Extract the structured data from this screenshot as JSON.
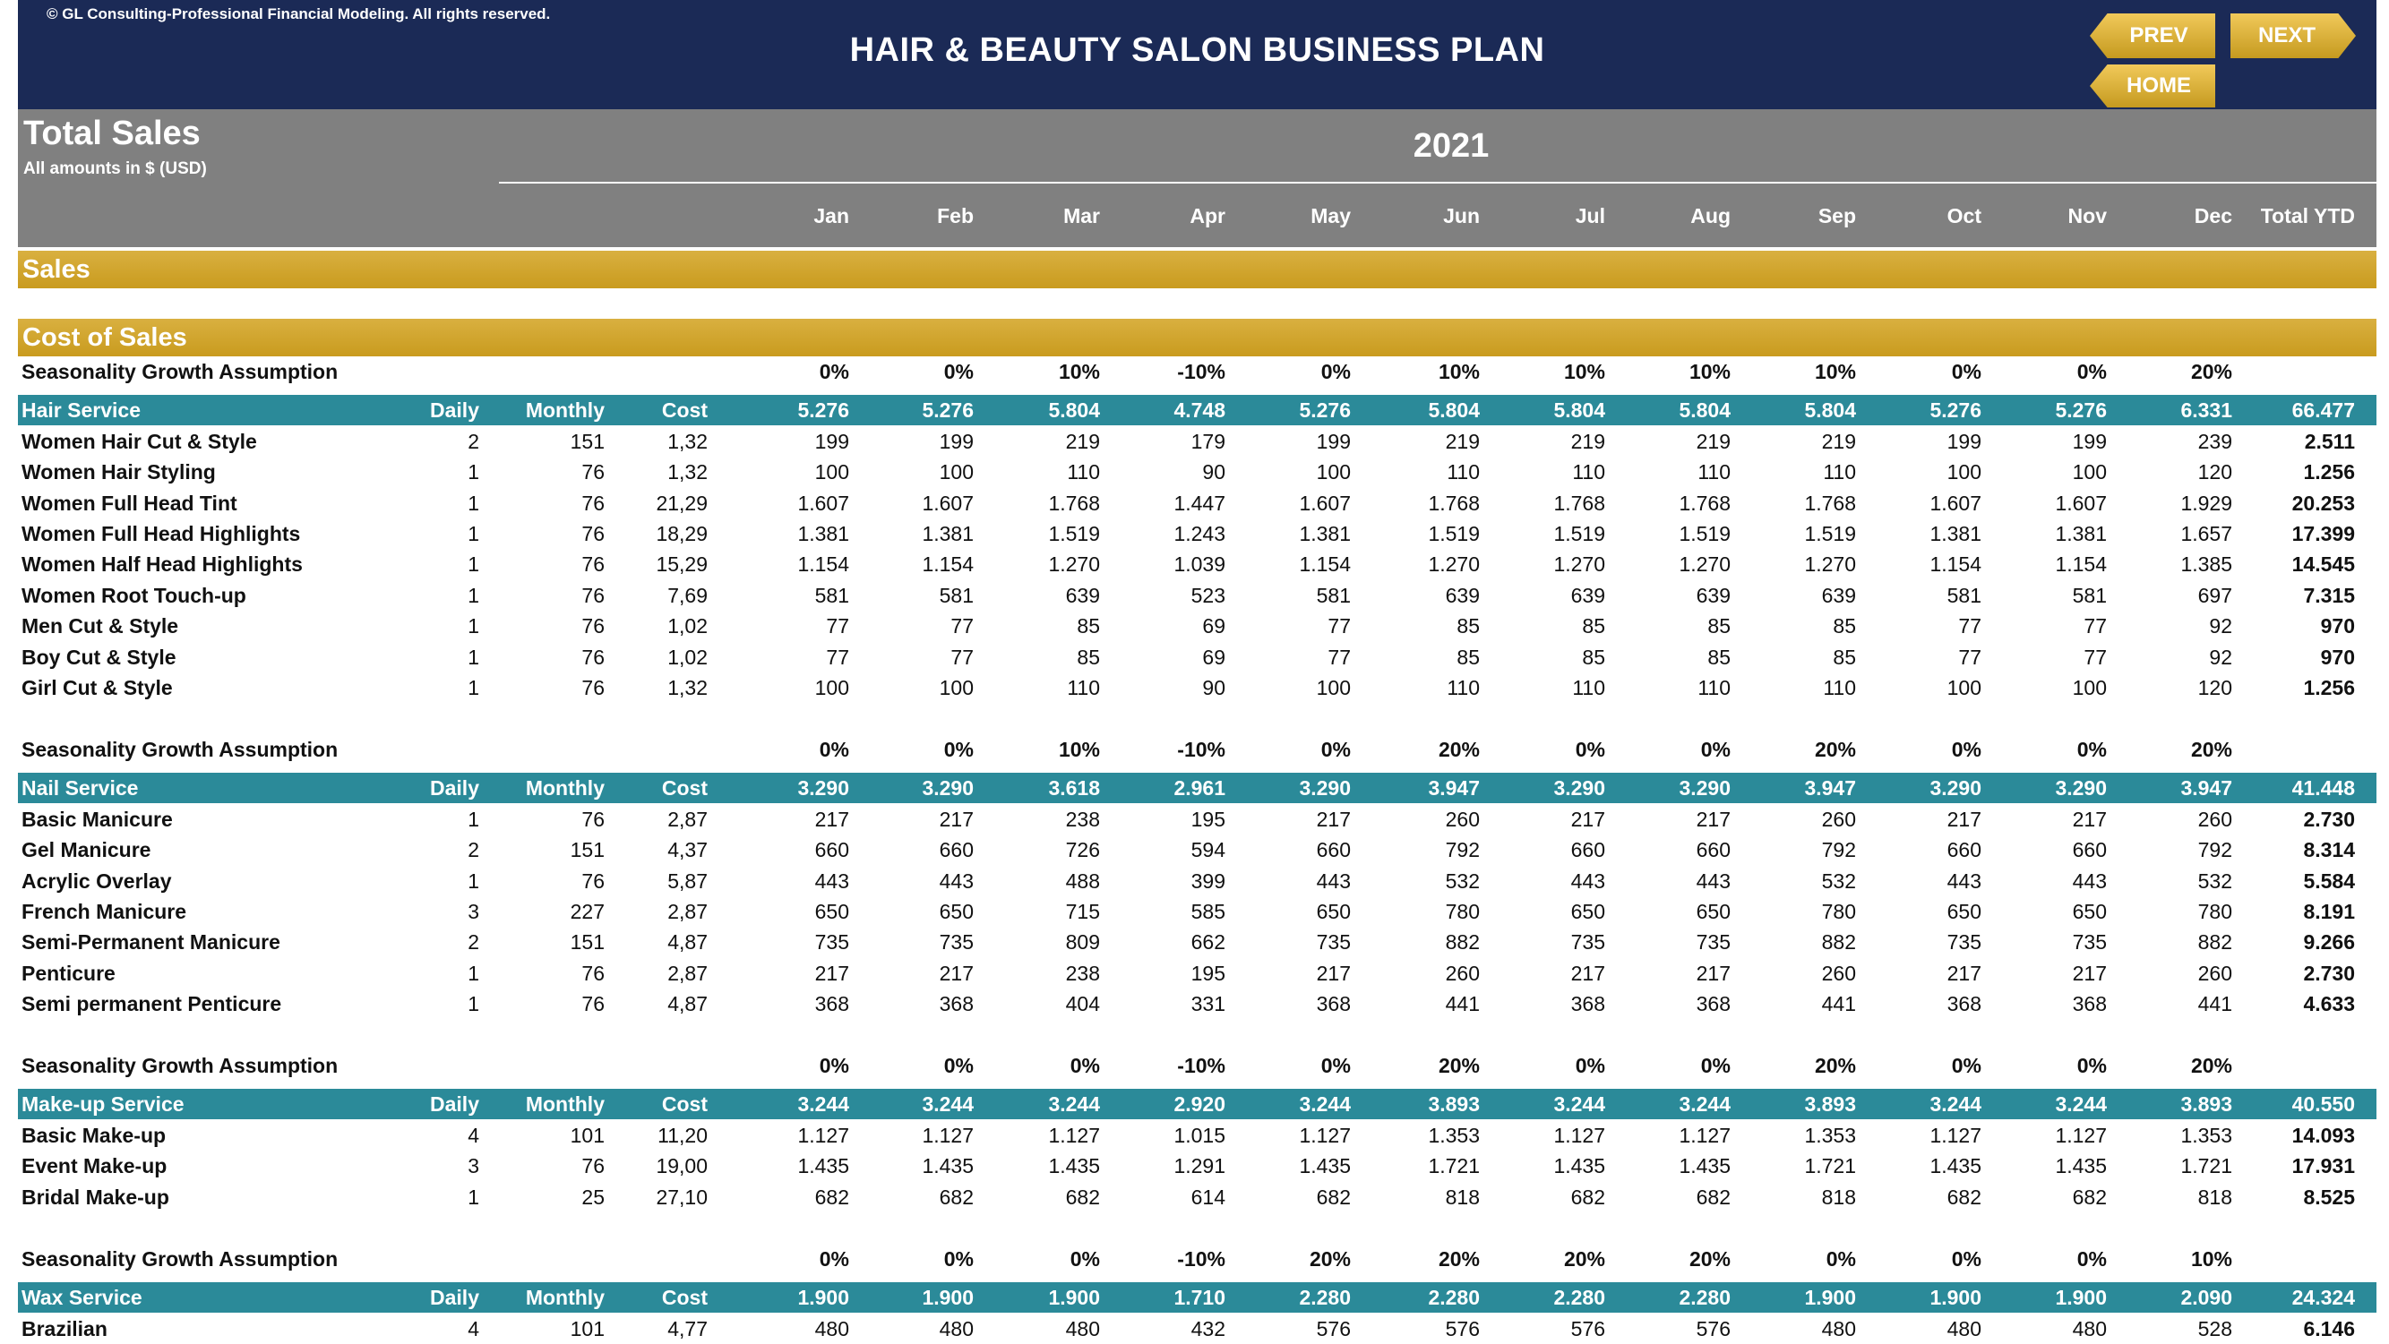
{
  "copyright": "© GL Consulting-Professional Financial Modeling. All rights reserved.",
  "title": "HAIR & BEAUTY SALON BUSINESS PLAN",
  "nav": {
    "prev": "PREV",
    "next": "NEXT",
    "home": "HOME"
  },
  "header": {
    "page_title": "Total Sales",
    "subtitle": "All amounts in $ (USD)",
    "year": "2021",
    "months": [
      "Jan",
      "Feb",
      "Mar",
      "Apr",
      "May",
      "Jun",
      "Jul",
      "Aug",
      "Sep",
      "Oct",
      "Nov",
      "Dec"
    ],
    "total_label": "Total YTD"
  },
  "bands": {
    "sales": "Sales",
    "cost_of_sales": "Cost of Sales"
  },
  "colors": {
    "navy": "#1b2a56",
    "gray": "#808080",
    "gold": "#c99b1e",
    "teal": "#2b8a99"
  },
  "sections": [
    {
      "seasonality_label": "Seasonality Growth Assumption",
      "seasonality": [
        "0%",
        "0%",
        "10%",
        "-10%",
        "0%",
        "10%",
        "10%",
        "10%",
        "10%",
        "0%",
        "0%",
        "20%"
      ],
      "name": "Hair Service",
      "daily_label": "Daily",
      "monthly_label": "Monthly",
      "cost_label": "Cost",
      "totals": [
        "5.276",
        "5.276",
        "5.804",
        "4.748",
        "5.276",
        "5.804",
        "5.804",
        "5.804",
        "5.804",
        "5.276",
        "5.276",
        "6.331"
      ],
      "total_ytd": "66.477",
      "items": [
        {
          "label": "Women Hair Cut & Style",
          "daily": "2",
          "monthly": "151",
          "cost": "1,32",
          "months": [
            "199",
            "199",
            "219",
            "179",
            "199",
            "219",
            "219",
            "219",
            "219",
            "199",
            "199",
            "239"
          ],
          "total": "2.511"
        },
        {
          "label": "Women Hair Styling",
          "daily": "1",
          "monthly": "76",
          "cost": "1,32",
          "months": [
            "100",
            "100",
            "110",
            "90",
            "100",
            "110",
            "110",
            "110",
            "110",
            "100",
            "100",
            "120"
          ],
          "total": "1.256"
        },
        {
          "label": "Women Full Head Tint",
          "daily": "1",
          "monthly": "76",
          "cost": "21,29",
          "months": [
            "1.607",
            "1.607",
            "1.768",
            "1.447",
            "1.607",
            "1.768",
            "1.768",
            "1.768",
            "1.768",
            "1.607",
            "1.607",
            "1.929"
          ],
          "total": "20.253"
        },
        {
          "label": "Women Full Head Highlights",
          "daily": "1",
          "monthly": "76",
          "cost": "18,29",
          "months": [
            "1.381",
            "1.381",
            "1.519",
            "1.243",
            "1.381",
            "1.519",
            "1.519",
            "1.519",
            "1.519",
            "1.381",
            "1.381",
            "1.657"
          ],
          "total": "17.399"
        },
        {
          "label": "Women Half Head Highlights",
          "daily": "1",
          "monthly": "76",
          "cost": "15,29",
          "months": [
            "1.154",
            "1.154",
            "1.270",
            "1.039",
            "1.154",
            "1.270",
            "1.270",
            "1.270",
            "1.270",
            "1.154",
            "1.154",
            "1.385"
          ],
          "total": "14.545"
        },
        {
          "label": "Women Root Touch-up",
          "daily": "1",
          "monthly": "76",
          "cost": "7,69",
          "months": [
            "581",
            "581",
            "639",
            "523",
            "581",
            "639",
            "639",
            "639",
            "639",
            "581",
            "581",
            "697"
          ],
          "total": "7.315"
        },
        {
          "label": "Men Cut & Style",
          "daily": "1",
          "monthly": "76",
          "cost": "1,02",
          "months": [
            "77",
            "77",
            "85",
            "69",
            "77",
            "85",
            "85",
            "85",
            "85",
            "77",
            "77",
            "92"
          ],
          "total": "970"
        },
        {
          "label": "Boy Cut & Style",
          "daily": "1",
          "monthly": "76",
          "cost": "1,02",
          "months": [
            "77",
            "77",
            "85",
            "69",
            "77",
            "85",
            "85",
            "85",
            "85",
            "77",
            "77",
            "92"
          ],
          "total": "970"
        },
        {
          "label": "Girl Cut & Style",
          "daily": "1",
          "monthly": "76",
          "cost": "1,32",
          "months": [
            "100",
            "100",
            "110",
            "90",
            "100",
            "110",
            "110",
            "110",
            "110",
            "100",
            "100",
            "120"
          ],
          "total": "1.256"
        }
      ]
    },
    {
      "seasonality_label": "Seasonality Growth Assumption",
      "seasonality": [
        "0%",
        "0%",
        "10%",
        "-10%",
        "0%",
        "20%",
        "0%",
        "0%",
        "20%",
        "0%",
        "0%",
        "20%"
      ],
      "name": "Nail Service",
      "daily_label": "Daily",
      "monthly_label": "Monthly",
      "cost_label": "Cost",
      "totals": [
        "3.290",
        "3.290",
        "3.618",
        "2.961",
        "3.290",
        "3.947",
        "3.290",
        "3.290",
        "3.947",
        "3.290",
        "3.290",
        "3.947"
      ],
      "total_ytd": "41.448",
      "items": [
        {
          "label": "Basic Manicure",
          "daily": "1",
          "monthly": "76",
          "cost": "2,87",
          "months": [
            "217",
            "217",
            "238",
            "195",
            "217",
            "260",
            "217",
            "217",
            "260",
            "217",
            "217",
            "260"
          ],
          "total": "2.730"
        },
        {
          "label": "Gel Manicure",
          "daily": "2",
          "monthly": "151",
          "cost": "4,37",
          "months": [
            "660",
            "660",
            "726",
            "594",
            "660",
            "792",
            "660",
            "660",
            "792",
            "660",
            "660",
            "792"
          ],
          "total": "8.314"
        },
        {
          "label": "Acrylic Overlay",
          "daily": "1",
          "monthly": "76",
          "cost": "5,87",
          "months": [
            "443",
            "443",
            "488",
            "399",
            "443",
            "532",
            "443",
            "443",
            "532",
            "443",
            "443",
            "532"
          ],
          "total": "5.584"
        },
        {
          "label": "French Manicure",
          "daily": "3",
          "monthly": "227",
          "cost": "2,87",
          "months": [
            "650",
            "650",
            "715",
            "585",
            "650",
            "780",
            "650",
            "650",
            "780",
            "650",
            "650",
            "780"
          ],
          "total": "8.191"
        },
        {
          "label": "Semi-Permanent Manicure",
          "daily": "2",
          "monthly": "151",
          "cost": "4,87",
          "months": [
            "735",
            "735",
            "809",
            "662",
            "735",
            "882",
            "735",
            "735",
            "882",
            "735",
            "735",
            "882"
          ],
          "total": "9.266"
        },
        {
          "label": "Penticure",
          "daily": "1",
          "monthly": "76",
          "cost": "2,87",
          "months": [
            "217",
            "217",
            "238",
            "195",
            "217",
            "260",
            "217",
            "217",
            "260",
            "217",
            "217",
            "260"
          ],
          "total": "2.730"
        },
        {
          "label": "Semi permanent Penticure",
          "daily": "1",
          "monthly": "76",
          "cost": "4,87",
          "months": [
            "368",
            "368",
            "404",
            "331",
            "368",
            "441",
            "368",
            "368",
            "441",
            "368",
            "368",
            "441"
          ],
          "total": "4.633"
        }
      ]
    },
    {
      "seasonality_label": "Seasonality Growth Assumption",
      "seasonality": [
        "0%",
        "0%",
        "0%",
        "-10%",
        "0%",
        "20%",
        "0%",
        "0%",
        "20%",
        "0%",
        "0%",
        "20%"
      ],
      "name": "Make-up Service",
      "daily_label": "Daily",
      "monthly_label": "Monthly",
      "cost_label": "Cost",
      "totals": [
        "3.244",
        "3.244",
        "3.244",
        "2.920",
        "3.244",
        "3.893",
        "3.244",
        "3.244",
        "3.893",
        "3.244",
        "3.244",
        "3.893"
      ],
      "total_ytd": "40.550",
      "items": [
        {
          "label": "Basic Make-up",
          "daily": "4",
          "monthly": "101",
          "cost": "11,20",
          "months": [
            "1.127",
            "1.127",
            "1.127",
            "1.015",
            "1.127",
            "1.353",
            "1.127",
            "1.127",
            "1.353",
            "1.127",
            "1.127",
            "1.353"
          ],
          "total": "14.093"
        },
        {
          "label": "Event Make-up",
          "daily": "3",
          "monthly": "76",
          "cost": "19,00",
          "months": [
            "1.435",
            "1.435",
            "1.435",
            "1.291",
            "1.435",
            "1.721",
            "1.435",
            "1.435",
            "1.721",
            "1.435",
            "1.435",
            "1.721"
          ],
          "total": "17.931"
        },
        {
          "label": "Bridal Make-up",
          "daily": "1",
          "monthly": "25",
          "cost": "27,10",
          "months": [
            "682",
            "682",
            "682",
            "614",
            "682",
            "818",
            "682",
            "682",
            "818",
            "682",
            "682",
            "818"
          ],
          "total": "8.525"
        }
      ]
    },
    {
      "seasonality_label": "Seasonality Growth Assumption",
      "seasonality": [
        "0%",
        "0%",
        "0%",
        "-10%",
        "20%",
        "20%",
        "20%",
        "20%",
        "0%",
        "0%",
        "0%",
        "10%"
      ],
      "name": "Wax Service",
      "daily_label": "Daily",
      "monthly_label": "Monthly",
      "cost_label": "Cost",
      "totals": [
        "1.900",
        "1.900",
        "1.900",
        "1.710",
        "2.280",
        "2.280",
        "2.280",
        "2.280",
        "1.900",
        "1.900",
        "1.900",
        "2.090"
      ],
      "total_ytd": "24.324",
      "items": [
        {
          "label": "Brazilian",
          "daily": "4",
          "monthly": "101",
          "cost": "4,77",
          "months": [
            "480",
            "480",
            "480",
            "432",
            "576",
            "576",
            "576",
            "576",
            "480",
            "480",
            "480",
            "528"
          ],
          "total": "6.146"
        }
      ]
    }
  ]
}
